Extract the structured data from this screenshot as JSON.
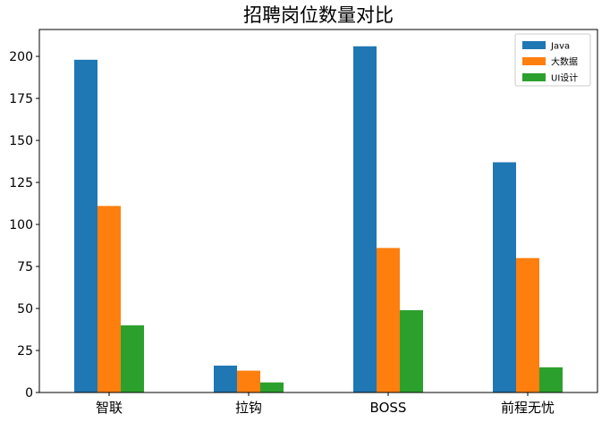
{
  "chart_data": {
    "type": "bar",
    "title": "招聘岗位数量对比",
    "xlabel": "",
    "ylabel": "",
    "categories": [
      "智联",
      "拉钩",
      "BOSS",
      "前程无忧"
    ],
    "series": [
      {
        "name": "Java",
        "color": "#1f77b4",
        "values": [
          198,
          16,
          206,
          137
        ]
      },
      {
        "name": "大数据",
        "color": "#ff7f0e",
        "values": [
          111,
          13,
          86,
          80
        ]
      },
      {
        "name": "UI设计",
        "color": "#2ca02c",
        "values": [
          40,
          6,
          49,
          15
        ]
      }
    ],
    "ylim": [
      0,
      216
    ],
    "yticks": [
      0,
      25,
      50,
      75,
      100,
      125,
      150,
      175,
      200
    ],
    "grid": false,
    "legend_position": "top-right"
  }
}
